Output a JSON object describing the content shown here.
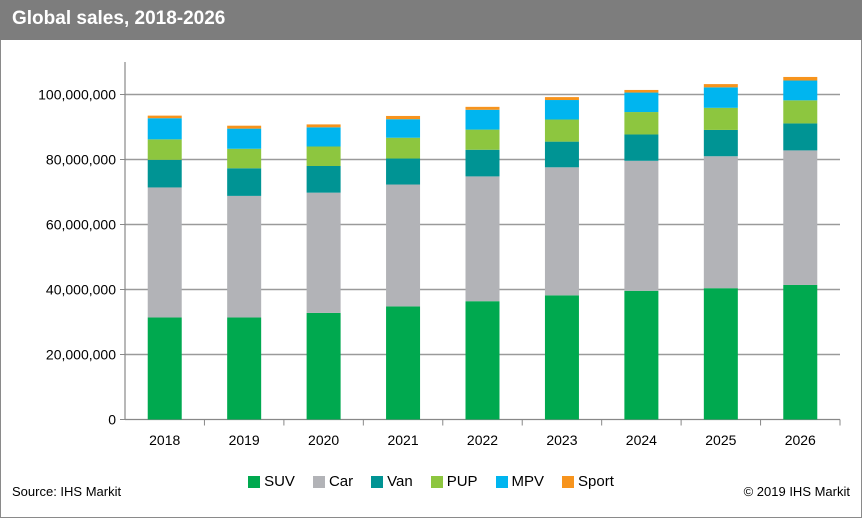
{
  "chart_data": {
    "type": "bar",
    "stacked": true,
    "title": "Global sales, 2018-2026",
    "xlabel": "",
    "ylabel": "",
    "ylim": [
      0,
      110000000
    ],
    "yticks": [
      "0",
      "20,000,000",
      "40,000,000",
      "60,000,000",
      "80,000,000",
      "100,000,000"
    ],
    "ytick_values": [
      0,
      20000000,
      40000000,
      60000000,
      80000000,
      100000000
    ],
    "grid": true,
    "legend": "bottom",
    "categories": [
      "2018",
      "2019",
      "2020",
      "2021",
      "2022",
      "2023",
      "2024",
      "2025",
      "2026"
    ],
    "series": [
      {
        "name": "SUV",
        "color": "#00a94f",
        "values": [
          31400000,
          31400000,
          32800000,
          34800000,
          36400000,
          38200000,
          39600000,
          40400000,
          41400000
        ]
      },
      {
        "name": "Car",
        "color": "#b2b3b7",
        "values": [
          40000000,
          37400000,
          37000000,
          37500000,
          38400000,
          39400000,
          40000000,
          40600000,
          41400000
        ]
      },
      {
        "name": "Van",
        "color": "#009494",
        "values": [
          8500000,
          8500000,
          8200000,
          8000000,
          8200000,
          7900000,
          8100000,
          8100000,
          8300000
        ]
      },
      {
        "name": "PUP",
        "color": "#8dc63f",
        "values": [
          6300000,
          6000000,
          6000000,
          6400000,
          6200000,
          6800000,
          6900000,
          6800000,
          7100000
        ]
      },
      {
        "name": "MPV",
        "color": "#00b5ef",
        "values": [
          6500000,
          6200000,
          5900000,
          5700000,
          6100000,
          6000000,
          6000000,
          6300000,
          6100000
        ]
      },
      {
        "name": "Sport",
        "color": "#f7941d",
        "values": [
          800000,
          900000,
          900000,
          1000000,
          900000,
          900000,
          800000,
          1000000,
          1100000
        ]
      }
    ]
  },
  "footer": {
    "source": "Source: IHS Markit",
    "copyright": "© 2019 IHS Markit"
  }
}
